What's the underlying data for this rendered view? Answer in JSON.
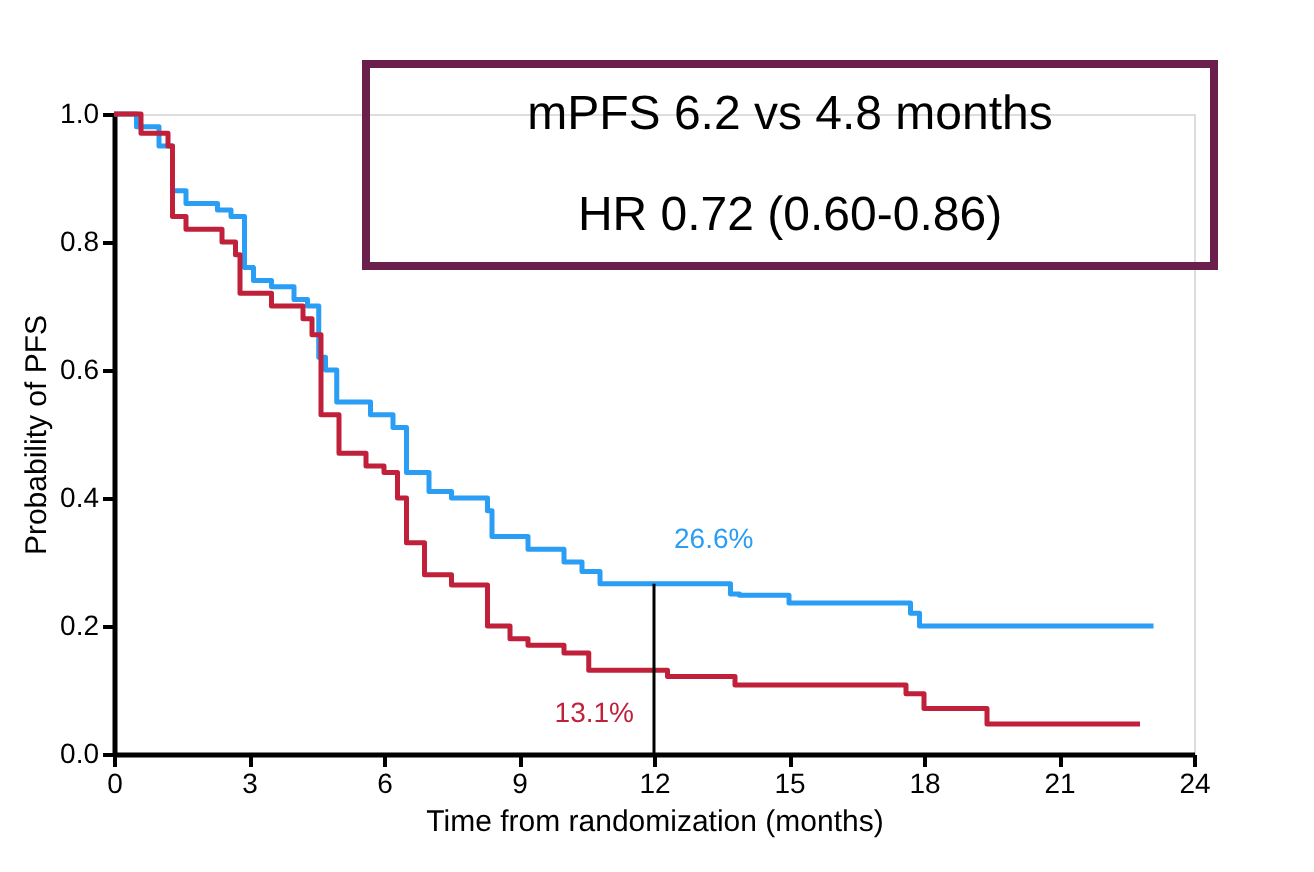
{
  "chart_data": {
    "type": "step",
    "xlabel": "Time from randomization (months)",
    "ylabel": "Probability of PFS",
    "xlim": [
      0,
      24
    ],
    "xticks": [
      0,
      3,
      6,
      9,
      12,
      15,
      18,
      21,
      24
    ],
    "ylim": [
      0,
      1.0
    ],
    "yticks": [
      {
        "value": 0,
        "label": "0.0"
      },
      0.2,
      0.4,
      0.6,
      0.8,
      {
        "value": 1,
        "label": "1.0"
      }
    ],
    "grid": false,
    "line_style": "solid",
    "series": [
      {
        "color": "#2a9df4",
        "x": [
          0,
          0.5,
          1.0,
          1.3,
          1.6,
          2.3,
          2.6,
          2.9,
          3.1,
          3.5,
          4.0,
          4.3,
          4.55,
          4.7,
          4.95,
          5.7,
          6.2,
          6.5,
          7.0,
          7.5,
          8.3,
          8.4,
          9.2,
          10.0,
          10.4,
          10.8,
          13.7,
          13.9,
          15.0,
          17.7,
          17.9,
          23.1
        ],
        "values": [
          1.0,
          0.98,
          0.95,
          0.88,
          0.86,
          0.85,
          0.84,
          0.76,
          0.74,
          0.73,
          0.71,
          0.7,
          0.62,
          0.6,
          0.55,
          0.53,
          0.51,
          0.44,
          0.41,
          0.4,
          0.38,
          0.34,
          0.32,
          0.3,
          0.285,
          0.266,
          0.25,
          0.248,
          0.236,
          0.22,
          0.2,
          0.2
        ]
      },
      {
        "color": "#c0203a",
        "x": [
          0,
          0.6,
          1.2,
          1.3,
          1.6,
          2.4,
          2.7,
          2.8,
          3.5,
          4.2,
          4.4,
          4.6,
          5.0,
          5.6,
          6.0,
          6.3,
          6.5,
          6.9,
          7.5,
          8.3,
          8.8,
          9.2,
          10.0,
          10.55,
          12.3,
          13.8,
          17.6,
          18.0,
          19.4,
          22.8
        ],
        "values": [
          1.0,
          0.97,
          0.95,
          0.84,
          0.82,
          0.8,
          0.78,
          0.72,
          0.7,
          0.68,
          0.655,
          0.53,
          0.47,
          0.45,
          0.44,
          0.4,
          0.33,
          0.28,
          0.264,
          0.2,
          0.18,
          0.17,
          0.158,
          0.131,
          0.121,
          0.108,
          0.094,
          0.071,
          0.047,
          0.047
        ]
      }
    ],
    "ref_lines": [
      {
        "axis": "x",
        "value": 12
      }
    ],
    "annotations": [
      "mPFS 6.2 vs 4.8 months",
      "HR 0.72 (0.60-0.86)",
      {
        "text": "26.6%",
        "x": 12,
        "y": 0.266
      },
      {
        "text": "13.1%",
        "x": 12,
        "y": 0.131
      }
    ]
  }
}
